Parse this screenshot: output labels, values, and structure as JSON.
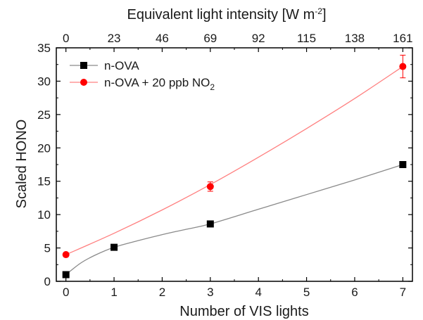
{
  "chart_data": {
    "type": "scatter",
    "xlabel": "Number of VIS lights",
    "ylabel": "Scaled HONO",
    "top_xlabel": "Equivalent light intensity [W m",
    "top_xlabel_sup": "-2",
    "top_xlabel_end": "]",
    "xlim": [
      -0.2,
      7.2
    ],
    "ylim": [
      0,
      35
    ],
    "xticks": [
      "0",
      "1",
      "2",
      "3",
      "4",
      "5",
      "6",
      "7"
    ],
    "yticks": [
      "0",
      "5",
      "10",
      "15",
      "20",
      "25",
      "30",
      "35"
    ],
    "top_xticks": [
      "0",
      "23",
      "46",
      "69",
      "92",
      "115",
      "138",
      "161"
    ],
    "grid": false,
    "legend_position": "top-left",
    "series": [
      {
        "name": "n-OVA",
        "name_parts": [
          "n-OVA"
        ],
        "marker": "square",
        "marker_color": "#000000",
        "line_color": "#8a8a8a",
        "x": [
          0,
          1,
          3,
          7
        ],
        "y": [
          1.0,
          5.1,
          8.6,
          17.5
        ],
        "fit_curve": {
          "x": [
            0,
            0.3,
            0.6,
            1,
            1.5,
            2,
            2.5,
            3,
            4,
            5,
            6,
            7
          ],
          "y": [
            1.0,
            2.7,
            3.9,
            5.1,
            6.1,
            7.0,
            7.8,
            8.6,
            10.8,
            13.0,
            15.2,
            17.5
          ]
        }
      },
      {
        "name": "n-OVA + 20 ppb NO2",
        "name_parts": [
          "n-OVA + 20 ppb NO",
          "2"
        ],
        "marker": "circle",
        "marker_color": "#ff0000",
        "line_color": "#ff8080",
        "x": [
          0,
          3,
          7
        ],
        "y": [
          4.0,
          14.2,
          32.2
        ],
        "error": [
          0,
          0.7,
          1.7
        ],
        "fit_curve": {
          "x": [
            0,
            1,
            2,
            3,
            4,
            5,
            6,
            7
          ],
          "y": [
            4.0,
            7.2,
            10.7,
            14.5,
            18.6,
            22.9,
            27.4,
            32.2
          ]
        }
      }
    ]
  }
}
